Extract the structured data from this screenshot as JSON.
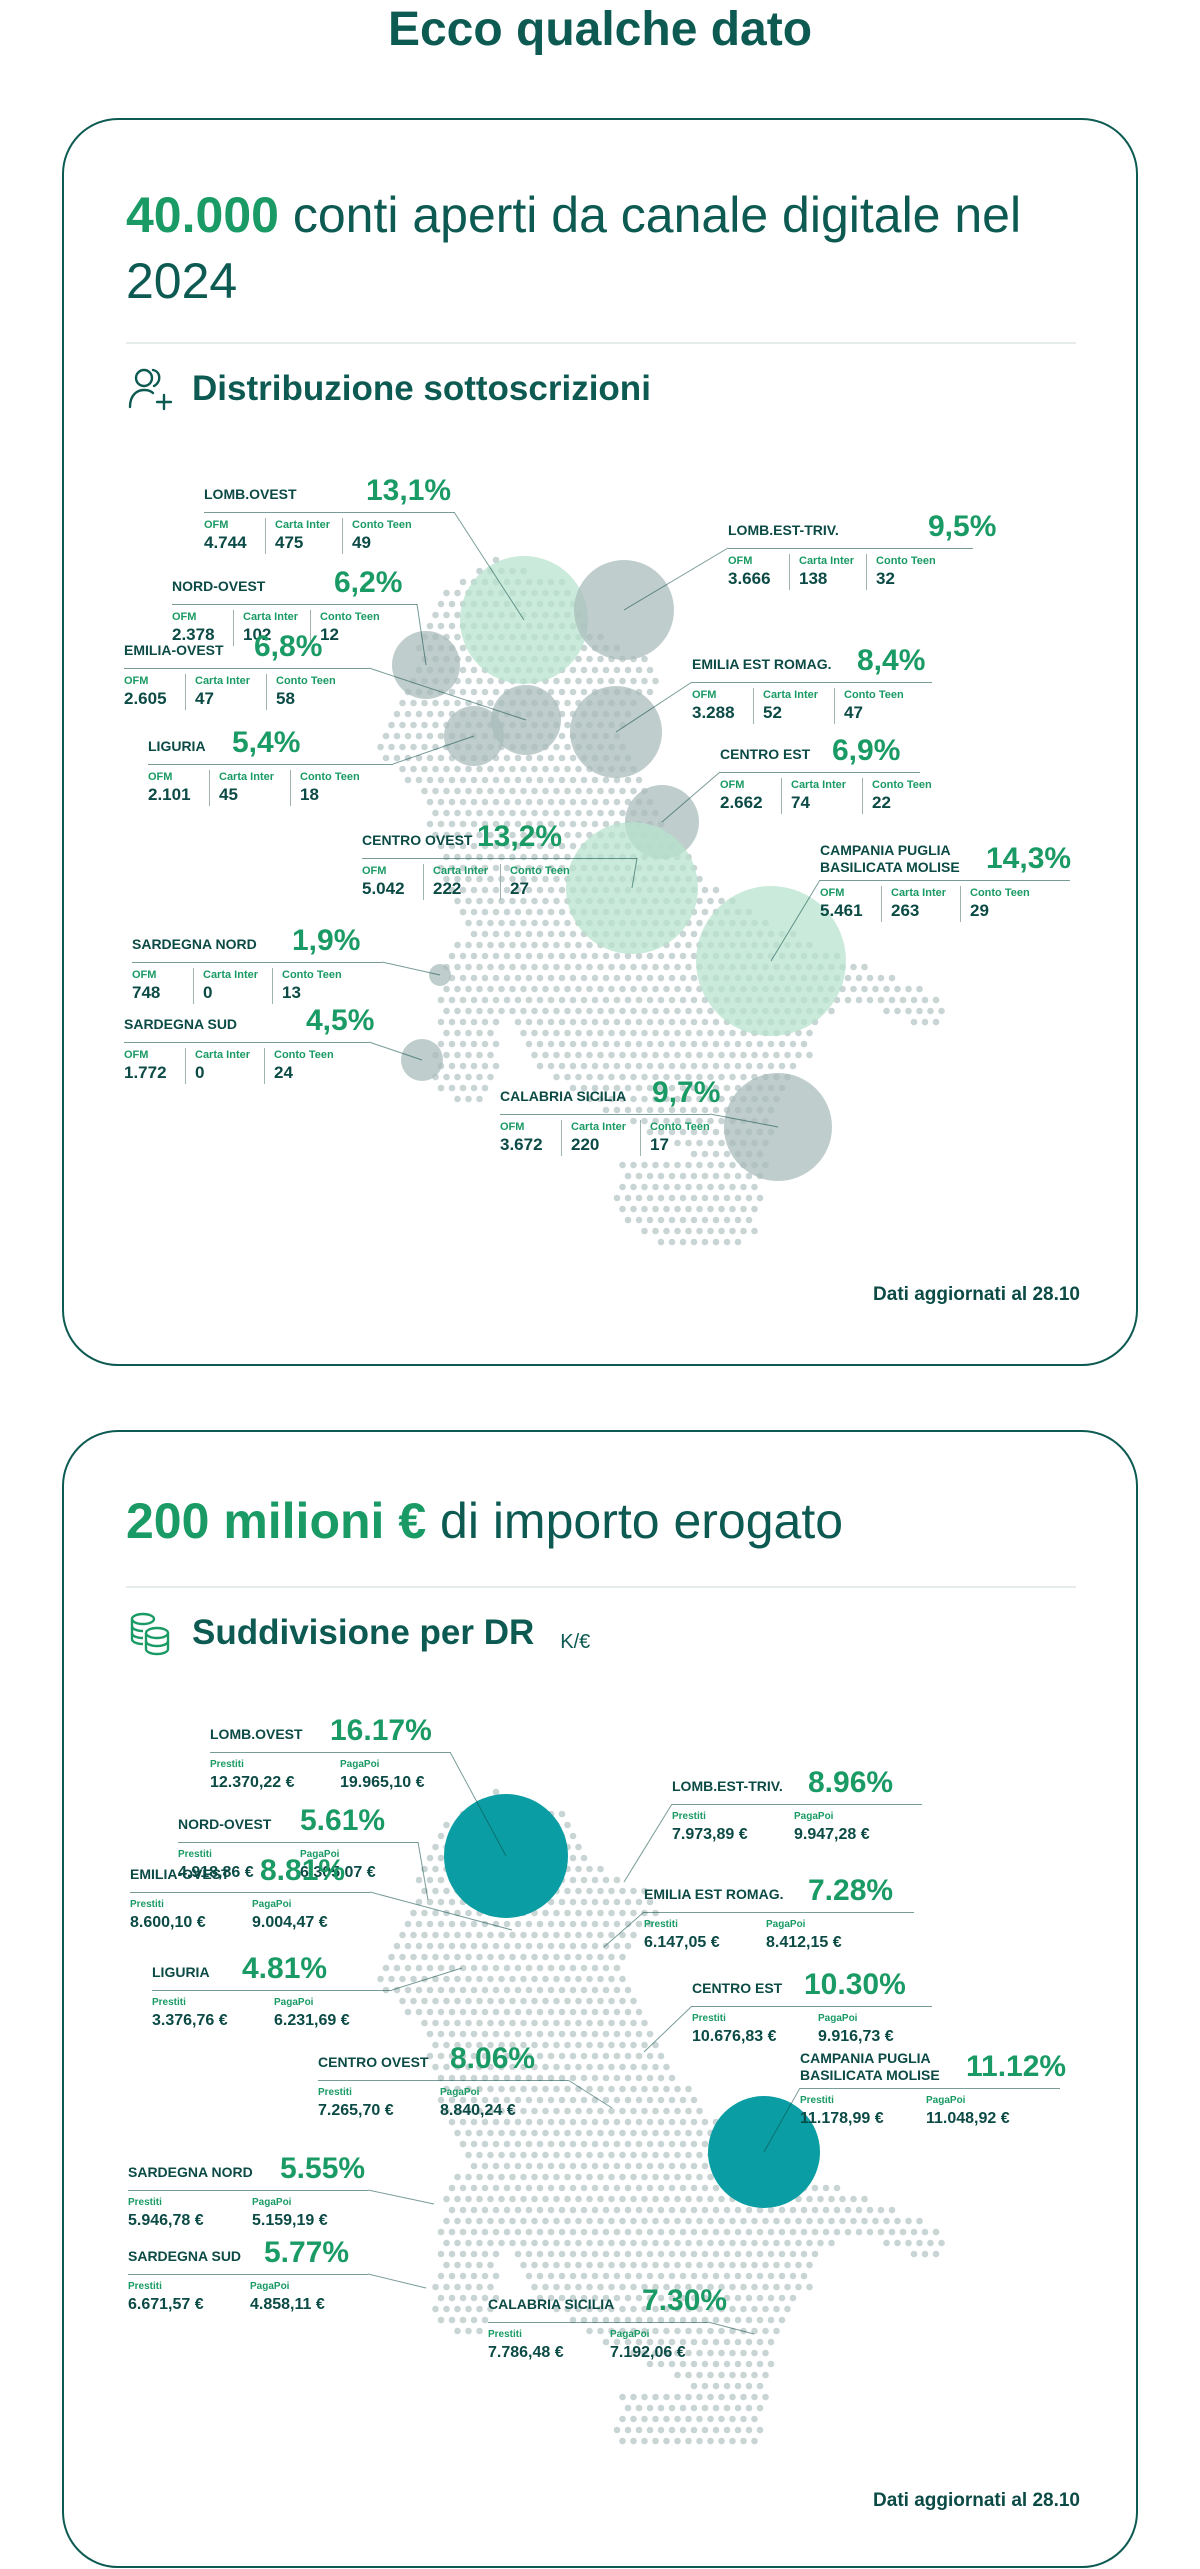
{
  "page_title": "Ecco qualche dato",
  "card1": {
    "headline_bold": "40.000",
    "headline_rest": " conti aperti da canale digitale nel 2024",
    "section_title": "Distribuzione sottoscrizioni",
    "section_icon": "user-add-icon",
    "footnote": "Dati aggiornati al 28.10"
  },
  "card2": {
    "headline_bold": "200 milioni €",
    "headline_rest": " di importo erogato",
    "section_title": "Suddivisione per DR",
    "section_unit": "K/€",
    "section_icon": "coins-icon",
    "footnote": "Dati aggiornati al 28.10"
  },
  "colors": {
    "primary": "#0d5a52",
    "accent": "#1a9a64",
    "bubble_light": "#b8e3cf",
    "bubble_grey": "#a9bcbb",
    "bubble_teal": "#0a9ea4",
    "map_dots": "#c9d4d4"
  },
  "chart_data": [
    {
      "type": "bubble-map",
      "title": "Distribuzione sottoscrizioni",
      "stat_labels": [
        "OFM",
        "Carta Inter",
        "Conto Teen"
      ],
      "regions": [
        {
          "name": "LOMB.OVEST",
          "pct": "13,1%",
          "value": 13.1,
          "stats": [
            "4.744",
            "475",
            "49"
          ]
        },
        {
          "name": "LOMB.EST-TRIV.",
          "pct": "9,5%",
          "value": 9.5,
          "stats": [
            "3.666",
            "138",
            "32"
          ]
        },
        {
          "name": "NORD-OVEST",
          "pct": "6,2%",
          "value": 6.2,
          "stats": [
            "2.378",
            "102",
            "12"
          ]
        },
        {
          "name": "EMILIA-OVEST",
          "pct": "6,8%",
          "value": 6.8,
          "stats": [
            "2.605",
            "47",
            "58"
          ]
        },
        {
          "name": "EMILIA EST ROMAG.",
          "pct": "8,4%",
          "value": 8.4,
          "stats": [
            "3.288",
            "52",
            "47"
          ]
        },
        {
          "name": "LIGURIA",
          "pct": "5,4%",
          "value": 5.4,
          "stats": [
            "2.101",
            "45",
            "18"
          ]
        },
        {
          "name": "CENTRO EST",
          "pct": "6,9%",
          "value": 6.9,
          "stats": [
            "2.662",
            "74",
            "22"
          ]
        },
        {
          "name": "CENTRO OVEST",
          "pct": "13,2%",
          "value": 13.2,
          "stats": [
            "5.042",
            "222",
            "27"
          ]
        },
        {
          "name": "CAMPANIA PUGLIA BASILICATA MOLISE",
          "pct": "14,3%",
          "value": 14.3,
          "stats": [
            "5.461",
            "263",
            "29"
          ]
        },
        {
          "name": "SARDEGNA NORD",
          "pct": "1,9%",
          "value": 1.9,
          "stats": [
            "748",
            "0",
            "13"
          ]
        },
        {
          "name": "SARDEGNA SUD",
          "pct": "4,5%",
          "value": 4.5,
          "stats": [
            "1.772",
            "0",
            "24"
          ]
        },
        {
          "name": "CALABRIA SICILIA",
          "pct": "9,7%",
          "value": 9.7,
          "stats": [
            "3.672",
            "220",
            "17"
          ]
        }
      ]
    },
    {
      "type": "bubble-map",
      "title": "Suddivisione per DR",
      "unit": "K/€",
      "stat_labels": [
        "Prestiti",
        "PagaPoi"
      ],
      "regions": [
        {
          "name": "LOMB.OVEST",
          "pct": "16.17%",
          "value": 16.17,
          "stats": [
            "12.370,22 €",
            "19.965,10 €"
          ]
        },
        {
          "name": "LOMB.EST-TRIV.",
          "pct": "8.96%",
          "value": 8.96,
          "stats": [
            "7.973,89 €",
            "9.947,28 €"
          ]
        },
        {
          "name": "NORD-OVEST",
          "pct": "5.61%",
          "value": 5.61,
          "stats": [
            "4.918,86 €",
            "6.305,07 €"
          ]
        },
        {
          "name": "EMILIA EST ROMAG.",
          "pct": "7.28%",
          "value": 7.28,
          "stats": [
            "6.147,05 €",
            "8.412,15 €"
          ]
        },
        {
          "name": "EMILIA-OVEST",
          "pct": "8.81%",
          "value": 8.81,
          "stats": [
            "8.600,10 €",
            "9.004,47 €"
          ]
        },
        {
          "name": "CENTRO EST",
          "pct": "10.30%",
          "value": 10.3,
          "stats": [
            "10.676,83 €",
            "9.916,73 €"
          ]
        },
        {
          "name": "LIGURIA",
          "pct": "4.81%",
          "value": 4.81,
          "stats": [
            "3.376,76 €",
            "6.231,69 €"
          ]
        },
        {
          "name": "CENTRO OVEST",
          "pct": "8.06%",
          "value": 8.06,
          "stats": [
            "7.265,70 €",
            "8.840,24 €"
          ]
        },
        {
          "name": "CAMPANIA PUGLIA BASILICATA MOLISE",
          "pct": "11.12%",
          "value": 11.12,
          "stats": [
            "11.178,99 €",
            "11.048,92 €"
          ]
        },
        {
          "name": "SARDEGNA NORD",
          "pct": "5.55%",
          "value": 5.55,
          "stats": [
            "5.946,78 €",
            "5.159,19 €"
          ]
        },
        {
          "name": "SARDEGNA SUD",
          "pct": "5.77%",
          "value": 5.77,
          "stats": [
            "6.671,57 €",
            "4.858,11 €"
          ]
        },
        {
          "name": "CALABRIA SICILIA",
          "pct": "7.30%",
          "value": 7.3,
          "stats": [
            "7.786,48 €",
            "7.192,06 €"
          ]
        }
      ]
    }
  ]
}
